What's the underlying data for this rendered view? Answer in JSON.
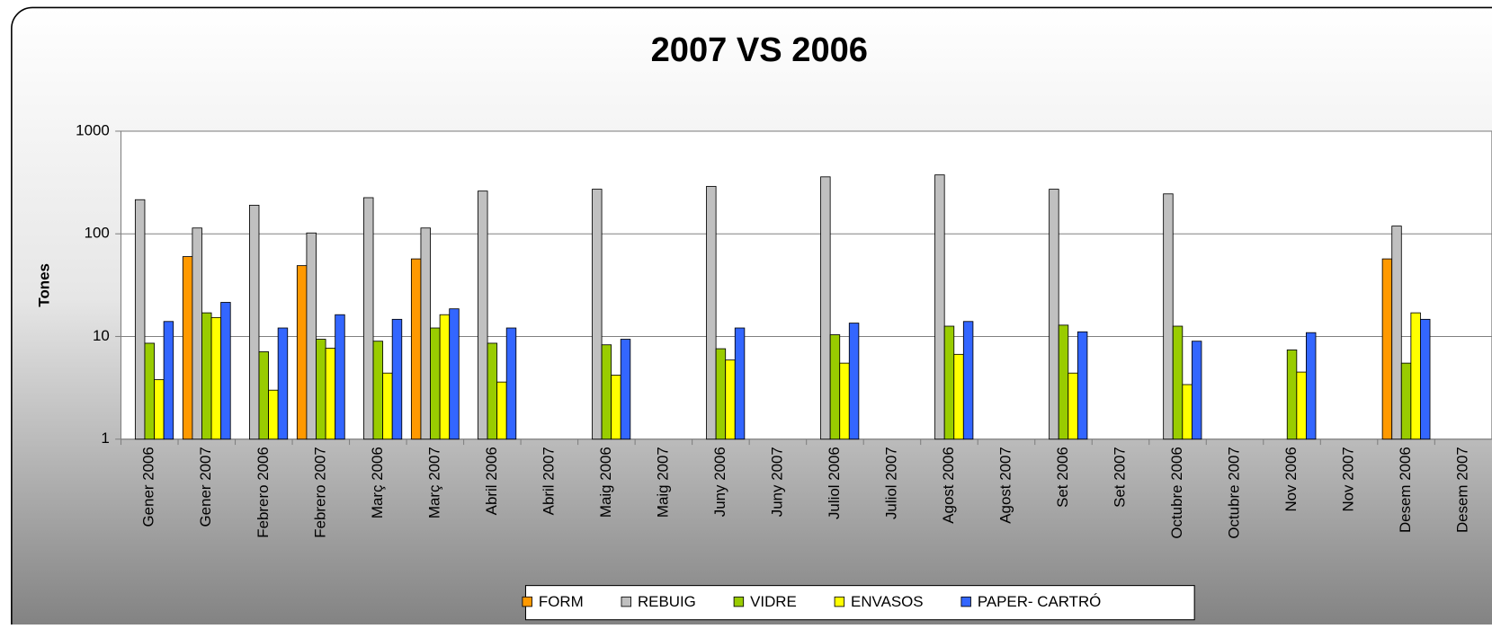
{
  "chart_data": {
    "type": "bar",
    "title": "2007 VS 2006",
    "y_label": "Tones",
    "log_scale": true,
    "grid": true,
    "legend": "bottom",
    "categories": [
      "Gener 2006",
      "Gener 2007",
      "Febrero 2006",
      "Febrero 2007",
      "Març 2006",
      "Març 2007",
      "Abril 2006",
      "Abril 2007",
      "Maig 2006",
      "Maig 2007",
      "Juny 2006",
      "Juny 2007",
      "Juliol 2006",
      "Juliol 2007",
      "Agost 2006",
      "Agost 2007",
      "Set 2006",
      "Set 2007",
      "Octubre 2006",
      "Octubre 2007",
      "Nov 2006",
      "Nov 2007",
      "Desem 2006",
      "Desem 2007"
    ],
    "series": [
      {
        "name": "FORM",
        "color": "#ff9900",
        "values": [
          null,
          60,
          null,
          49,
          null,
          57,
          null,
          null,
          null,
          null,
          null,
          null,
          null,
          null,
          null,
          null,
          null,
          null,
          null,
          null,
          null,
          null,
          57,
          null
        ]
      },
      {
        "name": "REBUIG",
        "color": "#c0c0c0",
        "values": [
          215,
          114,
          190,
          102,
          225,
          114,
          261,
          null,
          272,
          null,
          290,
          null,
          359,
          null,
          375,
          null,
          272,
          null,
          245,
          null,
          null,
          null,
          119,
          null
        ]
      },
      {
        "name": "VIDRE",
        "color": "#99cc00",
        "values": [
          8.6,
          17,
          7.1,
          9.4,
          9.0,
          12.1,
          8.6,
          null,
          8.3,
          null,
          7.6,
          null,
          10.4,
          null,
          12.6,
          null,
          12.9,
          null,
          12.6,
          null,
          7.4,
          null,
          5.5,
          null
        ]
      },
      {
        "name": "ENVASOS",
        "color": "#ffff00",
        "values": [
          3.8,
          15.3,
          3.0,
          7.7,
          4.4,
          16.3,
          3.6,
          null,
          4.2,
          null,
          5.9,
          null,
          5.5,
          null,
          6.7,
          null,
          4.4,
          null,
          3.4,
          null,
          4.5,
          null,
          17,
          null
        ]
      },
      {
        "name": "PAPER- CARTRÓ",
        "color": "#3366ff",
        "values": [
          14,
          21.5,
          12.1,
          16.3,
          14.7,
          18.6,
          12.1,
          null,
          9.4,
          null,
          12.1,
          null,
          13.5,
          null,
          14,
          null,
          11.1,
          null,
          9.0,
          null,
          10.9,
          null,
          14.7,
          null
        ]
      }
    ],
    "ylim": [
      1,
      1000
    ],
    "yticks": [
      1,
      10,
      100,
      1000
    ]
  }
}
